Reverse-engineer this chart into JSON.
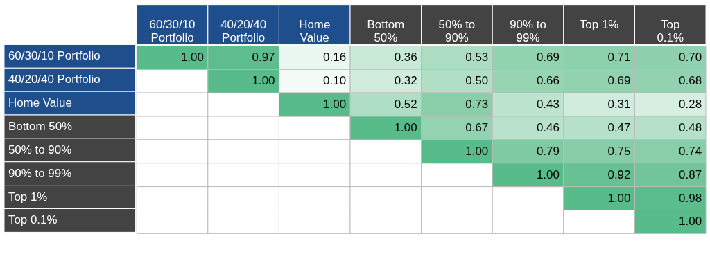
{
  "chart_data": {
    "type": "heatmap",
    "categories": [
      "60/30/10 Portfolio",
      "40/20/40 Portfolio",
      "Home Value",
      "Bottom 50%",
      "50% to 90%",
      "90% to 99%",
      "Top 1%",
      "Top 0.1%"
    ],
    "y_categories": [
      "60/30/10 Portfolio",
      "40/20/40 Portfolio",
      "Home Value",
      "Bottom 50%",
      "50% to 90%",
      "90% to 99%",
      "Top 1%",
      "Top 0.1%"
    ],
    "cells": [
      [
        1.0,
        0.97,
        0.16,
        0.36,
        0.53,
        0.69,
        0.71,
        0.7
      ],
      [
        null,
        1.0,
        0.1,
        0.32,
        0.5,
        0.66,
        0.69,
        0.68
      ],
      [
        null,
        null,
        1.0,
        0.52,
        0.73,
        0.43,
        0.31,
        0.28
      ],
      [
        null,
        null,
        null,
        1.0,
        0.67,
        0.46,
        0.47,
        0.48
      ],
      [
        null,
        null,
        null,
        null,
        1.0,
        0.79,
        0.75,
        0.74
      ],
      [
        null,
        null,
        null,
        null,
        null,
        1.0,
        0.92,
        0.87
      ],
      [
        null,
        null,
        null,
        null,
        null,
        null,
        1.0,
        0.98
      ],
      [
        null,
        null,
        null,
        null,
        null,
        null,
        null,
        1.0
      ]
    ],
    "cell_labels": [
      [
        "1.00",
        "0.97",
        "0.16",
        "0.36",
        "0.53",
        "0.69",
        "0.71",
        "0.70"
      ],
      [
        null,
        "1.00",
        "0.10",
        "0.32",
        "0.50",
        "0.66",
        "0.69",
        "0.68"
      ],
      [
        null,
        null,
        "1.00",
        "0.52",
        "0.73",
        "0.43",
        "0.31",
        "0.28"
      ],
      [
        null,
        null,
        null,
        "1.00",
        "0.67",
        "0.46",
        "0.47",
        "0.48"
      ],
      [
        null,
        null,
        null,
        null,
        "1.00",
        "0.79",
        "0.75",
        "0.74"
      ],
      [
        null,
        null,
        null,
        null,
        null,
        "1.00",
        "0.92",
        "0.87"
      ],
      [
        null,
        null,
        null,
        null,
        null,
        null,
        "1.00",
        "0.98"
      ],
      [
        null,
        null,
        null,
        null,
        null,
        null,
        null,
        "1.00"
      ]
    ]
  }
}
